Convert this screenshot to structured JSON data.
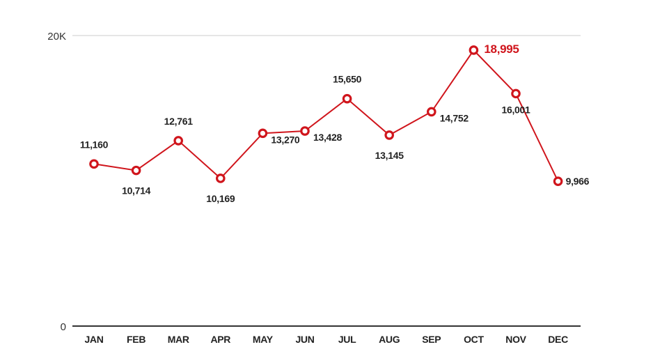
{
  "chart_data": {
    "type": "line",
    "title": "",
    "xlabel": "",
    "ylabel": "",
    "categories": [
      "JAN",
      "FEB",
      "MAR",
      "APR",
      "MAY",
      "JUN",
      "JUL",
      "AUG",
      "SEP",
      "OCT",
      "NOV",
      "DEC"
    ],
    "values": [
      11160,
      10714,
      12761,
      10169,
      13270,
      13428,
      15650,
      13145,
      14752,
      18995,
      16001,
      9966
    ],
    "value_labels": [
      "11,160",
      "10,714",
      "12,761",
      "10,169",
      "13,270",
      "13,428",
      "15,650",
      "13,145",
      "14,752",
      "18,995",
      "16,001",
      "9,966"
    ],
    "ylim": [
      0,
      20000
    ],
    "y_ticks": [
      {
        "value": 0,
        "label": "0"
      },
      {
        "value": 20000,
        "label": "20K"
      }
    ],
    "grid": true,
    "highlight_index": 9,
    "colors": {
      "line": "#d0151c",
      "highlight_label": "#d0151c",
      "label": "#222222",
      "gridline": "#cccccc",
      "axis": "#333333"
    }
  }
}
